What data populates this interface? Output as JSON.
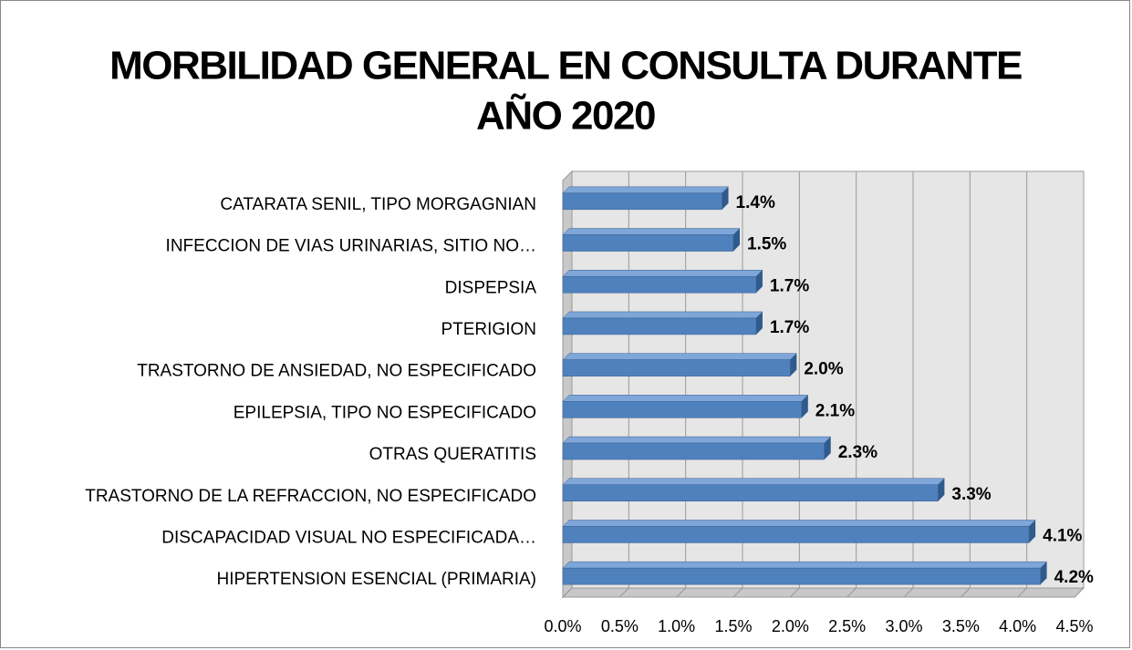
{
  "chart_data": {
    "type": "bar",
    "orientation": "horizontal",
    "title": [
      "MORBILIDAD GENERAL EN CONSULTA DURANTE",
      "AÑO 2020"
    ],
    "categories": [
      "CATARATA SENIL, TIPO MORGAGNIAN",
      "INFECCION DE VIAS URINARIAS, SITIO NO…",
      "DISPEPSIA",
      "PTERIGION",
      "TRASTORNO DE ANSIEDAD, NO ESPECIFICADO",
      "EPILEPSIA, TIPO NO ESPECIFICADO",
      "OTRAS QUERATITIS",
      "TRASTORNO DE LA REFRACCION, NO ESPECIFICADO",
      "DISCAPACIDAD VISUAL NO ESPECIFICADA…",
      "HIPERTENSION ESENCIAL (PRIMARIA)"
    ],
    "values": [
      1.4,
      1.5,
      1.7,
      1.7,
      2.0,
      2.1,
      2.3,
      3.3,
      4.1,
      4.2
    ],
    "value_labels": [
      "1.4%",
      "1.5%",
      "1.7%",
      "1.7%",
      "2.0%",
      "2.1%",
      "2.3%",
      "3.3%",
      "4.1%",
      "4.2%"
    ],
    "color": "#4f81bd",
    "xlim": [
      0,
      4.5
    ],
    "xticks": [
      {
        "value": 0,
        "label": "0.0%"
      },
      {
        "value": 0.5,
        "label": "0.5%"
      },
      {
        "value": 1,
        "label": "1.0%"
      },
      {
        "value": 1.5,
        "label": "1.5%"
      },
      {
        "value": 2,
        "label": "2.0%"
      },
      {
        "value": 2.5,
        "label": "2.5%"
      },
      {
        "value": 3,
        "label": "3.0%"
      },
      {
        "value": 3.5,
        "label": "3.5%"
      },
      {
        "value": 4,
        "label": "4.0%"
      },
      {
        "value": 4.5,
        "label": "4.5%"
      }
    ],
    "grid": true
  }
}
